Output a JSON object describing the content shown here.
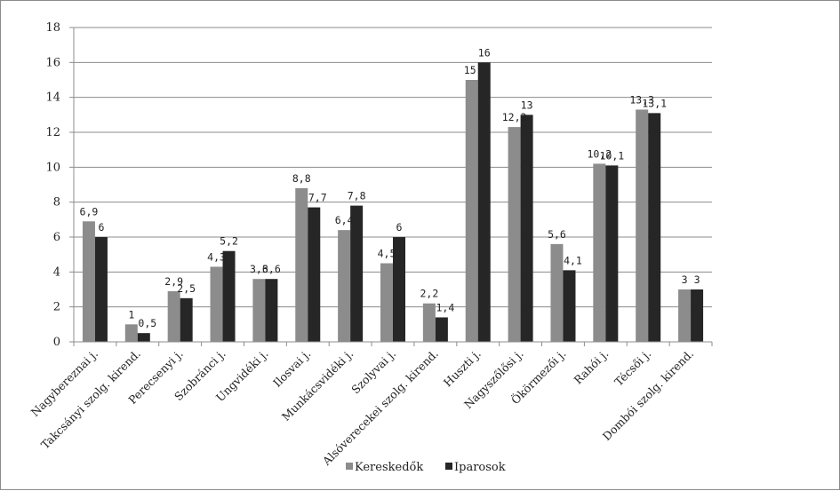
{
  "chart_data": {
    "type": "bar",
    "categories": [
      "Nagybereznai j.",
      "Takcsányi szolg. kirend.",
      "Perecsenyi j.",
      "Szobránci j.",
      "Ungvidéki j.",
      "Ilosvai j.",
      "Munkácsvidéki j.",
      "Szolyvai j.",
      "Alsóverecekei szolg. kirend.",
      "Huszti j.",
      "Nagyszőlősi j.",
      "Ökörmezői j.",
      "Rahói j.",
      "Técsői j.",
      "Dombói szolg. kirend."
    ],
    "series": [
      {
        "name": "Kereskedők",
        "color": "#8c8c8c",
        "values": [
          6.9,
          1,
          2.9,
          4.3,
          3.6,
          8.8,
          6.4,
          4.5,
          2.2,
          15,
          12.3,
          5.6,
          10.2,
          13.3,
          3
        ],
        "labels": [
          "6,9",
          "1",
          "2,9",
          "4,3",
          "3,6",
          "8,8",
          "6,4",
          "4,5",
          "2,2",
          "15",
          "12,3",
          "5,6",
          "10,2",
          "13,3",
          "3"
        ]
      },
      {
        "name": "Iparosok",
        "color": "#262626",
        "values": [
          6,
          0.5,
          2.5,
          5.2,
          3.6,
          7.7,
          7.8,
          6,
          1.4,
          16,
          13,
          4.1,
          10.1,
          13.1,
          3
        ],
        "labels": [
          "6",
          "0,5",
          "2,5",
          "5,2",
          "3,6",
          "7,7",
          "7,8",
          "6",
          "1,4",
          "16",
          "13",
          "4,1",
          "10,1",
          "13,1",
          "3"
        ]
      }
    ],
    "ylim": [
      0,
      18
    ],
    "yticks": [
      0,
      2,
      4,
      6,
      8,
      10,
      12,
      14,
      16,
      18
    ],
    "grid": true,
    "legend_position": "bottom"
  }
}
